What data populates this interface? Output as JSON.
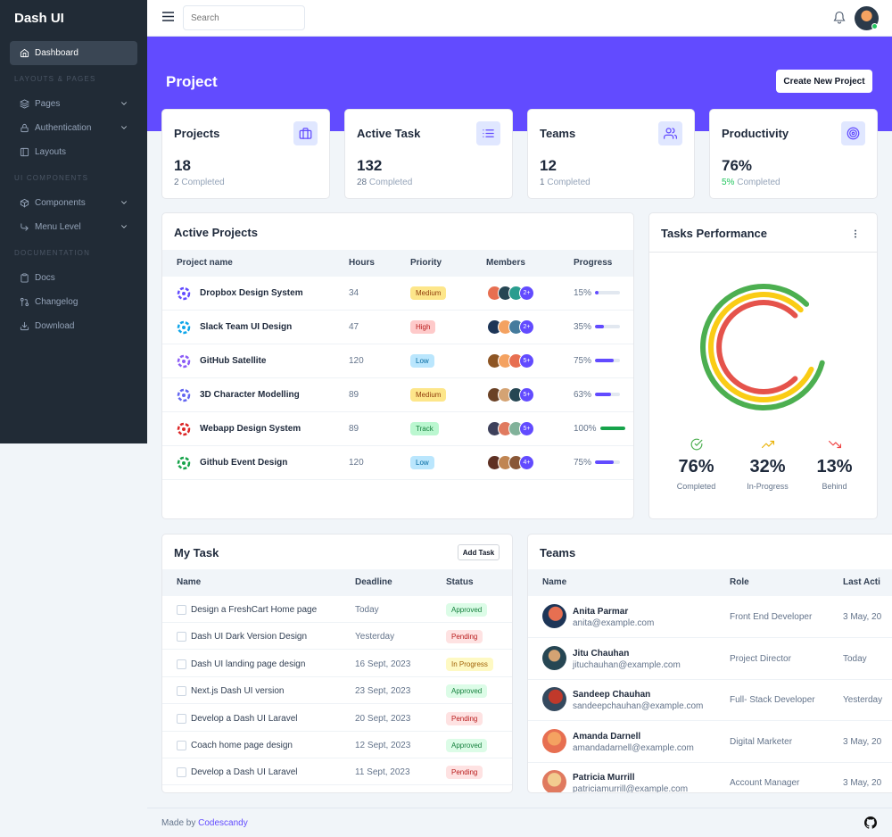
{
  "brand": "Dash UI",
  "sidebar": {
    "items": [
      {
        "label": "Dashboard",
        "icon": "home-icon",
        "active": true
      },
      {
        "section": "LAYOUTS & PAGES"
      },
      {
        "label": "Pages",
        "icon": "layers-icon",
        "chevron": true
      },
      {
        "label": "Authentication",
        "icon": "lock-icon",
        "chevron": true
      },
      {
        "label": "Layouts",
        "icon": "sidebar-layout-icon"
      },
      {
        "section": "UI COMPONENTS"
      },
      {
        "label": "Components",
        "icon": "package-icon",
        "chevron": true
      },
      {
        "label": "Menu Level",
        "icon": "corner-icon",
        "chevron": true
      },
      {
        "section": "DOCUMENTATION"
      },
      {
        "label": "Docs",
        "icon": "clipboard-icon"
      },
      {
        "label": "Changelog",
        "icon": "git-pull-icon"
      },
      {
        "label": "Download",
        "icon": "download-icon"
      }
    ]
  },
  "topbar": {
    "search_placeholder": "Search"
  },
  "header": {
    "title": "Project",
    "create_label": "Create New Project"
  },
  "stats": [
    {
      "title": "Projects",
      "value": "18",
      "sub_value": "2",
      "sub_text": " Completed",
      "icon": "briefcase-icon"
    },
    {
      "title": "Active Task",
      "value": "132",
      "sub_value": "28",
      "sub_text": " Completed",
      "icon": "list-icon"
    },
    {
      "title": "Teams",
      "value": "12",
      "sub_value": "1",
      "sub_text": " Completed",
      "icon": "users-icon"
    },
    {
      "title": "Productivity",
      "value": "76%",
      "sub_value": "5%",
      "sub_text": " Completed",
      "icon": "target-icon"
    }
  ],
  "active_projects": {
    "title": "Active Projects",
    "headers": [
      "Project name",
      "Hours",
      "Priority",
      "Members",
      "Progress"
    ],
    "rows": [
      {
        "name": "Dropbox Design System",
        "hours": "34",
        "priority": "Medium",
        "more": "2+",
        "progress": "15%",
        "pct": 0.15,
        "icon_color": "#624bff"
      },
      {
        "name": "Slack Team UI Design",
        "hours": "47",
        "priority": "High",
        "more": "2+",
        "progress": "35%",
        "pct": 0.35,
        "icon_color": "#0ea5e9"
      },
      {
        "name": "GitHub Satellite",
        "hours": "120",
        "priority": "Low",
        "more": "5+",
        "progress": "75%",
        "pct": 0.75,
        "icon_color": "#8b5cf6"
      },
      {
        "name": "3D Character Modelling",
        "hours": "89",
        "priority": "Medium",
        "more": "5+",
        "progress": "63%",
        "pct": 0.63,
        "icon_color": "#6366f1"
      },
      {
        "name": "Webapp Design System",
        "hours": "89",
        "priority": "Track",
        "more": "5+",
        "progress": "100%",
        "pct": 1.0,
        "icon_color": "#dc2626"
      },
      {
        "name": "Github Event Design",
        "hours": "120",
        "priority": "Low",
        "more": "4+",
        "progress": "75%",
        "pct": 0.75,
        "icon_color": "#16a34a"
      }
    ]
  },
  "tasks_performance": {
    "title": "Tasks Performance",
    "colors": {
      "completed": "#4caf50",
      "in_progress": "#facc15",
      "behind": "#e5534b"
    },
    "stats": [
      {
        "value": "76%",
        "label": "Completed",
        "icon": "check-circle-icon"
      },
      {
        "value": "32%",
        "label": "In-Progress",
        "icon": "trending-up-icon"
      },
      {
        "value": "13%",
        "label": "Behind",
        "icon": "trending-down-icon"
      }
    ]
  },
  "my_task": {
    "title": "My Task",
    "add_label": "Add Task",
    "headers": [
      "Name",
      "Deadline",
      "Status"
    ],
    "rows": [
      {
        "name": "Design a FreshCart Home page",
        "deadline": "Today",
        "status": "Approved"
      },
      {
        "name": "Dash UI Dark Version Design",
        "deadline": "Yesterday",
        "status": "Pending"
      },
      {
        "name": "Dash UI landing page design",
        "deadline": "16 Sept, 2023",
        "status": "In Progress"
      },
      {
        "name": "Next.js Dash UI version",
        "deadline": "23 Sept, 2023",
        "status": "Approved"
      },
      {
        "name": "Develop a Dash UI Laravel",
        "deadline": "20 Sept, 2023",
        "status": "Pending"
      },
      {
        "name": "Coach home page design",
        "deadline": "12 Sept, 2023",
        "status": "Approved"
      },
      {
        "name": "Develop a Dash UI Laravel",
        "deadline": "11 Sept, 2023",
        "status": "Pending"
      }
    ]
  },
  "teams": {
    "title": "Teams",
    "headers": [
      "Name",
      "Role",
      "Last Acti"
    ],
    "rows": [
      {
        "name": "Anita Parmar",
        "email": "anita@example.com",
        "role": "Front End Developer",
        "last": "3 May, 20"
      },
      {
        "name": "Jitu Chauhan",
        "email": "jituchauhan@example.com",
        "role": "Project Director",
        "last": "Today"
      },
      {
        "name": "Sandeep Chauhan",
        "email": "sandeepchauhan@example.com",
        "role": "Full- Stack Developer",
        "last": "Yesterday"
      },
      {
        "name": "Amanda Darnell",
        "email": "amandadarnell@example.com",
        "role": "Digital Marketer",
        "last": "3 May, 20"
      },
      {
        "name": "Patricia Murrill",
        "email": "patriciamurrill@example.com",
        "role": "Account Manager",
        "last": "3 May, 20"
      }
    ]
  },
  "footer": {
    "prefix": "Made by ",
    "link": "Codescandy"
  }
}
